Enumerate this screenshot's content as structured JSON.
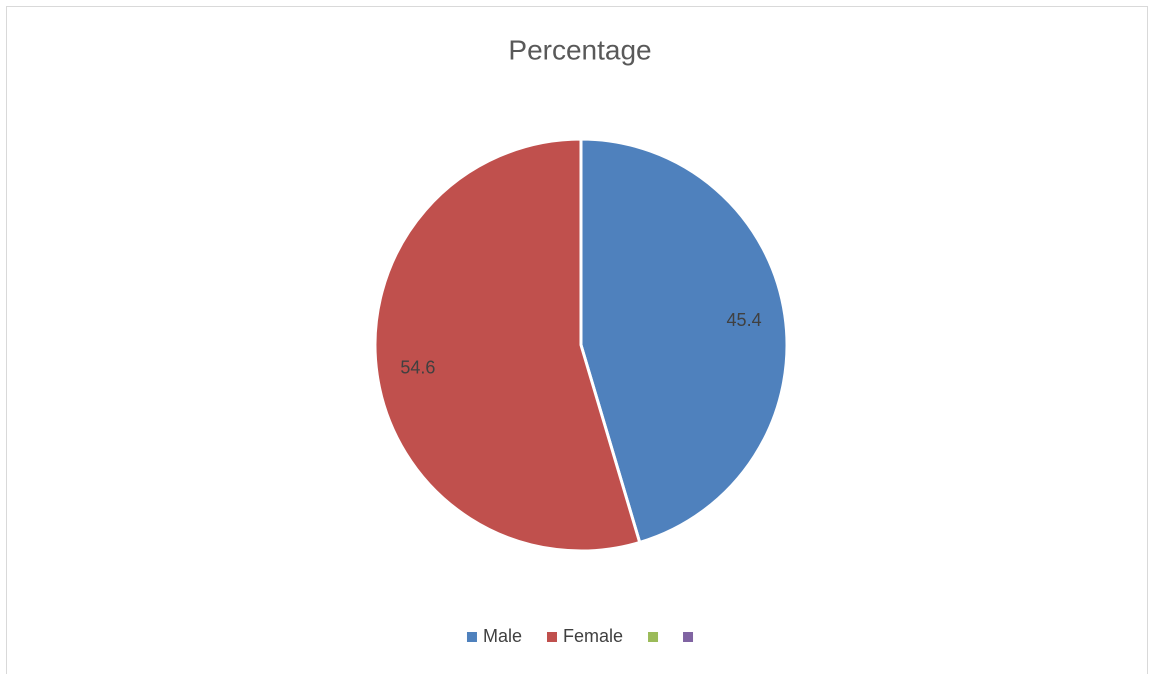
{
  "chart_data": {
    "type": "pie",
    "title": "Percentage",
    "categories": [
      "Male",
      "Female",
      null,
      null
    ],
    "values": [
      45.4,
      54.6,
      null,
      null
    ],
    "colors": [
      "#4f81bd",
      "#c0504d",
      "#9bbb59",
      "#8064a2"
    ],
    "legend": "bottom"
  }
}
